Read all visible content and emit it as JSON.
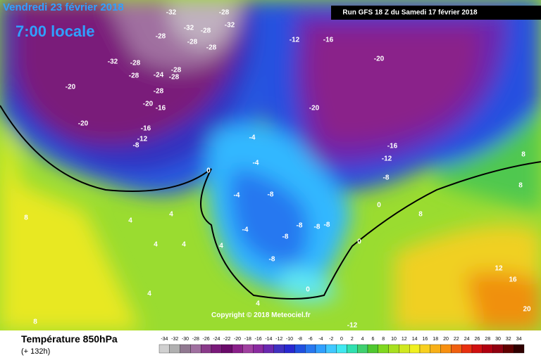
{
  "header": {
    "date": "Vendredi 23 février 2018",
    "time": "7:00 locale",
    "run": "Run GFS 18 Z du Samedi 17 février 2018"
  },
  "map": {
    "labels": [
      "-32",
      "-28",
      "-32",
      "-28",
      "-28",
      "-32",
      "-28",
      "-28",
      "-32",
      "-28",
      "-24",
      "-28",
      "-28",
      "-28",
      "-28",
      "-20",
      "-20",
      "-16",
      "-20",
      "-16",
      "-12",
      "-8",
      "-12",
      "-16",
      "-20",
      "-20",
      "-16",
      "-12",
      "-8",
      "-4",
      "0",
      "-4",
      "-4",
      "-8",
      "-4",
      "-8",
      "-8",
      "-8",
      "-8",
      "0",
      "0",
      "-8",
      "0",
      "8",
      "4",
      "4",
      "4",
      "4",
      "4",
      "4",
      "8",
      "8",
      "8",
      "12",
      "16",
      "20",
      "4",
      "-12",
      "8"
    ]
  },
  "copyright": "Copyright © 2018 Meteociel.fr",
  "legend": {
    "title": "Température 850hPa",
    "subtitle": "(+ 132h)",
    "scale": [
      -34,
      -32,
      -30,
      -28,
      -26,
      -24,
      -22,
      -20,
      -18,
      -16,
      -14,
      -12,
      -10,
      -8,
      -6,
      -4,
      -2,
      0,
      2,
      4,
      6,
      8,
      10,
      12,
      14,
      16,
      18,
      20,
      22,
      24,
      26,
      28,
      30,
      32,
      34
    ],
    "colors": [
      "#d0d0d0",
      "#b0b0b0",
      "#907890",
      "#a070a0",
      "#8a3a8a",
      "#7a1a7a",
      "#6a0a6a",
      "#8a208a",
      "#a040a0",
      "#8a2aa0",
      "#6a28b0",
      "#4030c0",
      "#2828d0",
      "#2050e0",
      "#2878f0",
      "#30a0ff",
      "#40c8ff",
      "#40e8f0",
      "#30e0b0",
      "#40d070",
      "#50c830",
      "#80d820",
      "#a8e020",
      "#d0e820",
      "#f0f020",
      "#f8d020",
      "#f8b018",
      "#f89010",
      "#f06010",
      "#e83010",
      "#d01010",
      "#b00010",
      "#900010",
      "#600000",
      "#300000"
    ]
  }
}
